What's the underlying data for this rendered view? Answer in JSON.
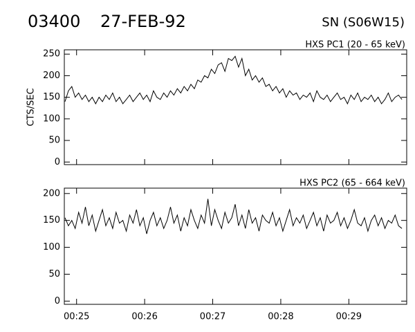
{
  "header": {
    "id": "03400",
    "date": "27-FEB-92",
    "location": "SN (S06W15)"
  },
  "chart_data": [
    {
      "type": "line",
      "title": "HXS PC1 (20 - 65 keV)",
      "ylabel": "CTS/SEC",
      "color": "#000000",
      "xlim": [
        24.82,
        29.85
      ],
      "ylim": [
        -6,
        260
      ],
      "xticks": [
        25,
        26,
        27,
        28,
        29
      ],
      "yticks": [
        0,
        50,
        100,
        150,
        200,
        250
      ],
      "x": [
        24.83,
        24.88,
        24.93,
        24.98,
        25.03,
        25.08,
        25.13,
        25.18,
        25.23,
        25.28,
        25.33,
        25.38,
        25.43,
        25.48,
        25.53,
        25.58,
        25.63,
        25.68,
        25.73,
        25.78,
        25.83,
        25.88,
        25.93,
        25.98,
        26.03,
        26.08,
        26.13,
        26.18,
        26.23,
        26.28,
        26.33,
        26.38,
        26.43,
        26.48,
        26.53,
        26.58,
        26.63,
        26.68,
        26.73,
        26.78,
        26.83,
        26.88,
        26.93,
        26.98,
        27.03,
        27.08,
        27.13,
        27.18,
        27.23,
        27.28,
        27.33,
        27.38,
        27.43,
        27.48,
        27.53,
        27.58,
        27.63,
        27.68,
        27.73,
        27.78,
        27.83,
        27.88,
        27.93,
        27.98,
        28.03,
        28.08,
        28.13,
        28.18,
        28.23,
        28.28,
        28.33,
        28.38,
        28.43,
        28.48,
        28.53,
        28.58,
        28.63,
        28.68,
        28.73,
        28.78,
        28.83,
        28.88,
        28.93,
        28.98,
        29.03,
        29.08,
        29.13,
        29.18,
        29.23,
        29.28,
        29.33,
        29.38,
        29.43,
        29.48,
        29.53,
        29.58,
        29.63,
        29.68,
        29.73,
        29.78
      ],
      "values": [
        140,
        165,
        175,
        150,
        160,
        145,
        155,
        140,
        150,
        135,
        150,
        140,
        155,
        145,
        160,
        140,
        150,
        135,
        145,
        155,
        140,
        150,
        160,
        145,
        155,
        140,
        165,
        150,
        145,
        160,
        150,
        165,
        155,
        170,
        160,
        175,
        165,
        180,
        170,
        190,
        185,
        200,
        195,
        215,
        205,
        225,
        230,
        210,
        240,
        235,
        245,
        220,
        240,
        200,
        215,
        190,
        200,
        185,
        195,
        175,
        180,
        165,
        175,
        160,
        170,
        150,
        165,
        155,
        160,
        145,
        155,
        150,
        160,
        140,
        165,
        150,
        145,
        155,
        140,
        150,
        160,
        145,
        150,
        135,
        155,
        145,
        160,
        140,
        150,
        145,
        155,
        140,
        150,
        135,
        145,
        160,
        140,
        150,
        155,
        145
      ]
    },
    {
      "type": "line",
      "title": "HXS PC2 (65 - 664 keV)",
      "color": "#000000",
      "xlim": [
        24.82,
        29.85
      ],
      "ylim": [
        -6,
        210
      ],
      "xticks": [
        {
          "value": 25,
          "label": "00:25"
        },
        {
          "value": 26,
          "label": "00:26"
        },
        {
          "value": 27,
          "label": "00:27"
        },
        {
          "value": 28,
          "label": "00:28"
        },
        {
          "value": 29,
          "label": "00:29"
        }
      ],
      "yticks": [
        0,
        50,
        100,
        150,
        200
      ],
      "x": [
        24.83,
        24.88,
        24.93,
        24.98,
        25.03,
        25.08,
        25.13,
        25.18,
        25.23,
        25.28,
        25.33,
        25.38,
        25.43,
        25.48,
        25.53,
        25.58,
        25.63,
        25.68,
        25.73,
        25.78,
        25.83,
        25.88,
        25.93,
        25.98,
        26.03,
        26.08,
        26.13,
        26.18,
        26.23,
        26.28,
        26.33,
        26.38,
        26.43,
        26.48,
        26.53,
        26.58,
        26.63,
        26.68,
        26.73,
        26.78,
        26.83,
        26.88,
        26.93,
        26.98,
        27.03,
        27.08,
        27.13,
        27.18,
        27.23,
        27.28,
        27.33,
        27.38,
        27.43,
        27.48,
        27.53,
        27.58,
        27.63,
        27.68,
        27.73,
        27.78,
        27.83,
        27.88,
        27.93,
        27.98,
        28.03,
        28.08,
        28.13,
        28.18,
        28.23,
        28.28,
        28.33,
        28.38,
        28.43,
        28.48,
        28.53,
        28.58,
        28.63,
        28.68,
        28.73,
        28.78,
        28.83,
        28.88,
        28.93,
        28.98,
        29.03,
        29.08,
        29.13,
        29.18,
        29.23,
        29.28,
        29.33,
        29.38,
        29.43,
        29.48,
        29.53,
        29.58,
        29.63,
        29.68,
        29.73,
        29.78
      ],
      "values": [
        155,
        140,
        150,
        135,
        165,
        145,
        175,
        140,
        160,
        130,
        150,
        170,
        140,
        155,
        135,
        165,
        145,
        150,
        130,
        160,
        145,
        170,
        140,
        155,
        125,
        150,
        165,
        140,
        155,
        135,
        150,
        175,
        145,
        160,
        130,
        155,
        140,
        170,
        150,
        135,
        160,
        145,
        190,
        140,
        170,
        150,
        135,
        165,
        145,
        155,
        180,
        140,
        160,
        135,
        170,
        145,
        155,
        130,
        160,
        150,
        145,
        165,
        140,
        155,
        130,
        150,
        170,
        140,
        155,
        145,
        160,
        135,
        150,
        165,
        140,
        155,
        130,
        160,
        145,
        150,
        165,
        140,
        155,
        135,
        150,
        170,
        145,
        140,
        155,
        130,
        150,
        160,
        140,
        155,
        135,
        150,
        145,
        160,
        140,
        135
      ]
    }
  ]
}
